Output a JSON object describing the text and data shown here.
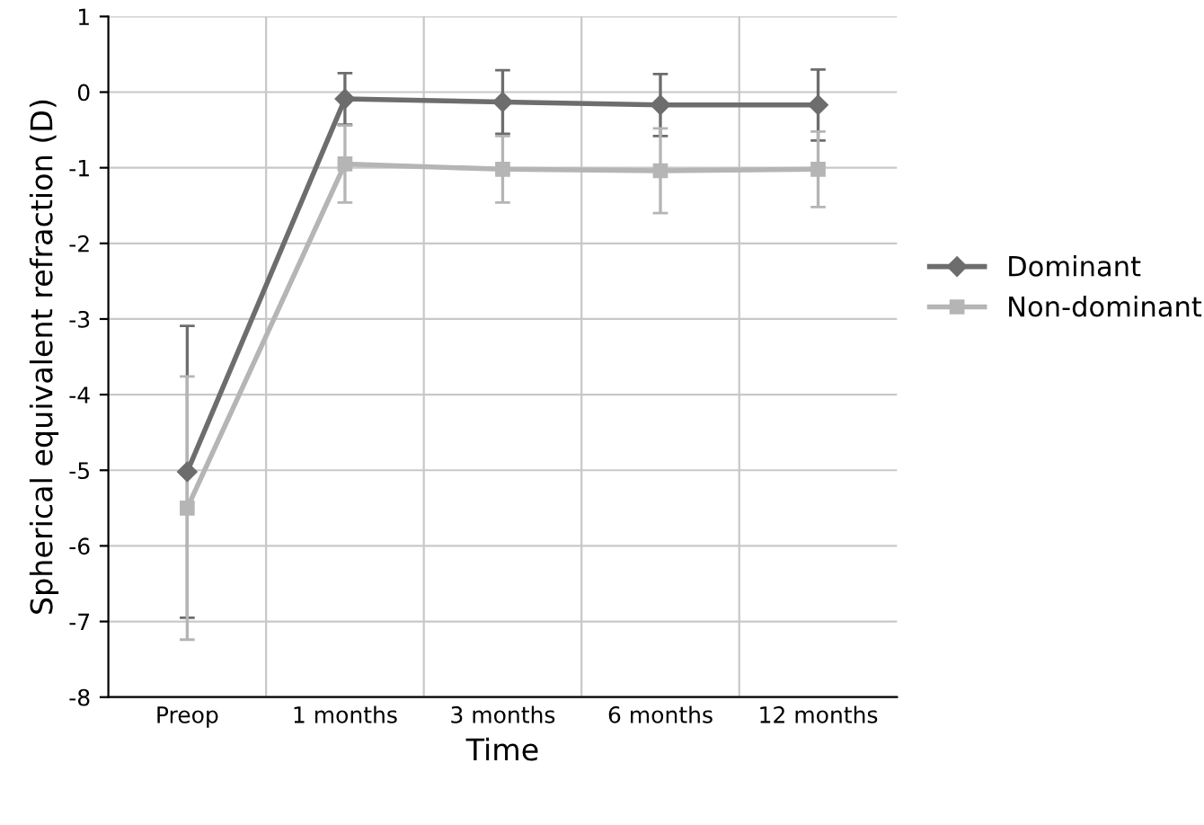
{
  "chart_data": {
    "type": "line",
    "xlabel": "Time",
    "ylabel": "Spherical equivalent refraction (D)",
    "categories": [
      "Preop",
      "1 months",
      "3 months",
      "6 months",
      "12 months"
    ],
    "series": [
      {
        "name": "Dominant",
        "color": "#6d6d6d",
        "marker": "diamond",
        "values": [
          -5.02,
          -0.09,
          -0.13,
          -0.17,
          -0.17
        ],
        "errors": [
          1.93,
          0.34,
          0.42,
          0.41,
          0.47
        ]
      },
      {
        "name": "Non-dominant",
        "color": "#b5b5b5",
        "marker": "square",
        "values": [
          -5.5,
          -0.95,
          -1.02,
          -1.04,
          -1.02
        ],
        "errors": [
          1.74,
          0.51,
          0.44,
          0.56,
          0.5
        ]
      }
    ],
    "ylim": [
      -8,
      1
    ],
    "yticks": [
      -8,
      -7,
      -6,
      -5,
      -4,
      -3,
      -2,
      -1,
      0,
      1
    ],
    "grid": true,
    "legend": "right"
  }
}
